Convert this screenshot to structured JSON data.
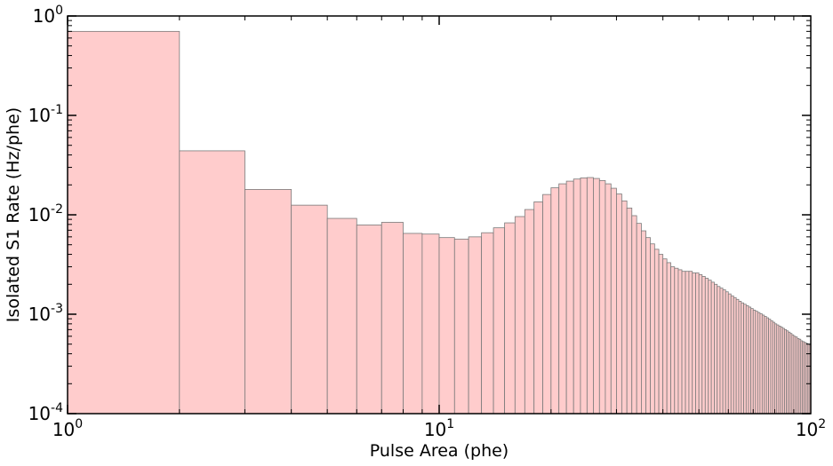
{
  "chart_data": {
    "type": "bar",
    "title": "",
    "xlabel": "Pulse Area (phe)",
    "ylabel": "Isolated S1 Rate (Hz/phe)",
    "xscale": "log",
    "yscale": "log",
    "xlim": [
      1,
      100
    ],
    "ylim": [
      0.0001,
      1
    ],
    "grid": false,
    "bar_color": "#ffcccc",
    "edge_color": "#7a7a7a",
    "x_tick_labels": [
      {
        "value": 1,
        "base": "10",
        "exp": "0"
      },
      {
        "value": 10,
        "base": "10",
        "exp": "1"
      },
      {
        "value": 100,
        "base": "10",
        "exp": "2"
      }
    ],
    "y_tick_labels": [
      {
        "value": 0.0001,
        "base": "10",
        "exp": "-4"
      },
      {
        "value": 0.001,
        "base": "10",
        "exp": "-3"
      },
      {
        "value": 0.01,
        "base": "10",
        "exp": "-2"
      },
      {
        "value": 0.1,
        "base": "10",
        "exp": "-1"
      },
      {
        "value": 1,
        "base": "10",
        "exp": "0"
      }
    ],
    "bin_width": 1,
    "bin_start": 1,
    "values": [
      0.7,
      0.044,
      0.018,
      0.0125,
      0.0092,
      0.0079,
      0.0084,
      0.0065,
      0.0064,
      0.0059,
      0.0057,
      0.006,
      0.0066,
      0.0074,
      0.0083,
      0.0096,
      0.0113,
      0.0135,
      0.016,
      0.0187,
      0.0205,
      0.0218,
      0.0229,
      0.0235,
      0.0237,
      0.0232,
      0.0221,
      0.0205,
      0.0185,
      0.0162,
      0.0138,
      0.0117,
      0.0098,
      0.0082,
      0.0069,
      0.0059,
      0.0051,
      0.0045,
      0.004,
      0.0036,
      0.0033,
      0.003,
      0.0029,
      0.0028,
      0.0027,
      0.0027,
      0.0027,
      0.0026,
      0.0026,
      0.0025,
      0.0024,
      0.0023,
      0.0022,
      0.0021,
      0.002,
      0.0019,
      0.00183,
      0.00176,
      0.00168,
      0.0016,
      0.00153,
      0.00147,
      0.00141,
      0.00135,
      0.0013,
      0.00126,
      0.00122,
      0.00118,
      0.00114,
      0.0011,
      0.00107,
      0.00104,
      0.00101,
      0.00098,
      0.00095,
      0.00092,
      0.00089,
      0.00086,
      0.00083,
      0.0008,
      0.00078,
      0.00076,
      0.00074,
      0.00072,
      0.0007,
      0.00068,
      0.00066,
      0.00064,
      0.00062,
      0.0006,
      0.00059,
      0.00057,
      0.00056,
      0.00054,
      0.00053,
      0.00052,
      0.00051,
      0.0005,
      0.00049
    ]
  }
}
